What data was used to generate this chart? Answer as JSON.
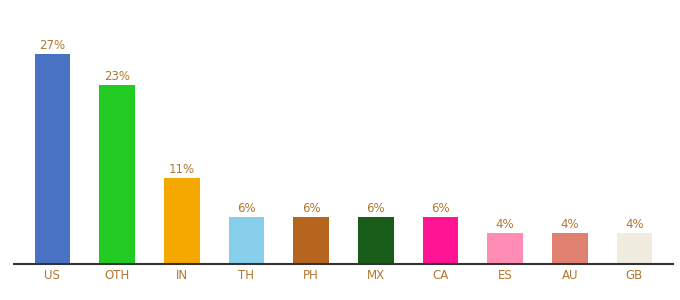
{
  "categories": [
    "US",
    "OTH",
    "IN",
    "TH",
    "PH",
    "MX",
    "CA",
    "ES",
    "AU",
    "GB"
  ],
  "values": [
    27,
    23,
    11,
    6,
    6,
    6,
    6,
    4,
    4,
    4
  ],
  "labels": [
    "27%",
    "23%",
    "11%",
    "6%",
    "6%",
    "6%",
    "6%",
    "4%",
    "4%",
    "4%"
  ],
  "bar_colors": [
    "#4a72c4",
    "#22cc22",
    "#f5a800",
    "#87ceeb",
    "#b5651d",
    "#1a5c1a",
    "#ff1493",
    "#ff8cb5",
    "#e08070",
    "#f0ede0"
  ],
  "background_color": "#ffffff",
  "ylim": [
    0,
    32
  ],
  "label_color": "#b07830",
  "tick_color": "#b07830",
  "label_fontsize": 8.5,
  "tick_fontsize": 8.5,
  "bar_width": 0.55
}
